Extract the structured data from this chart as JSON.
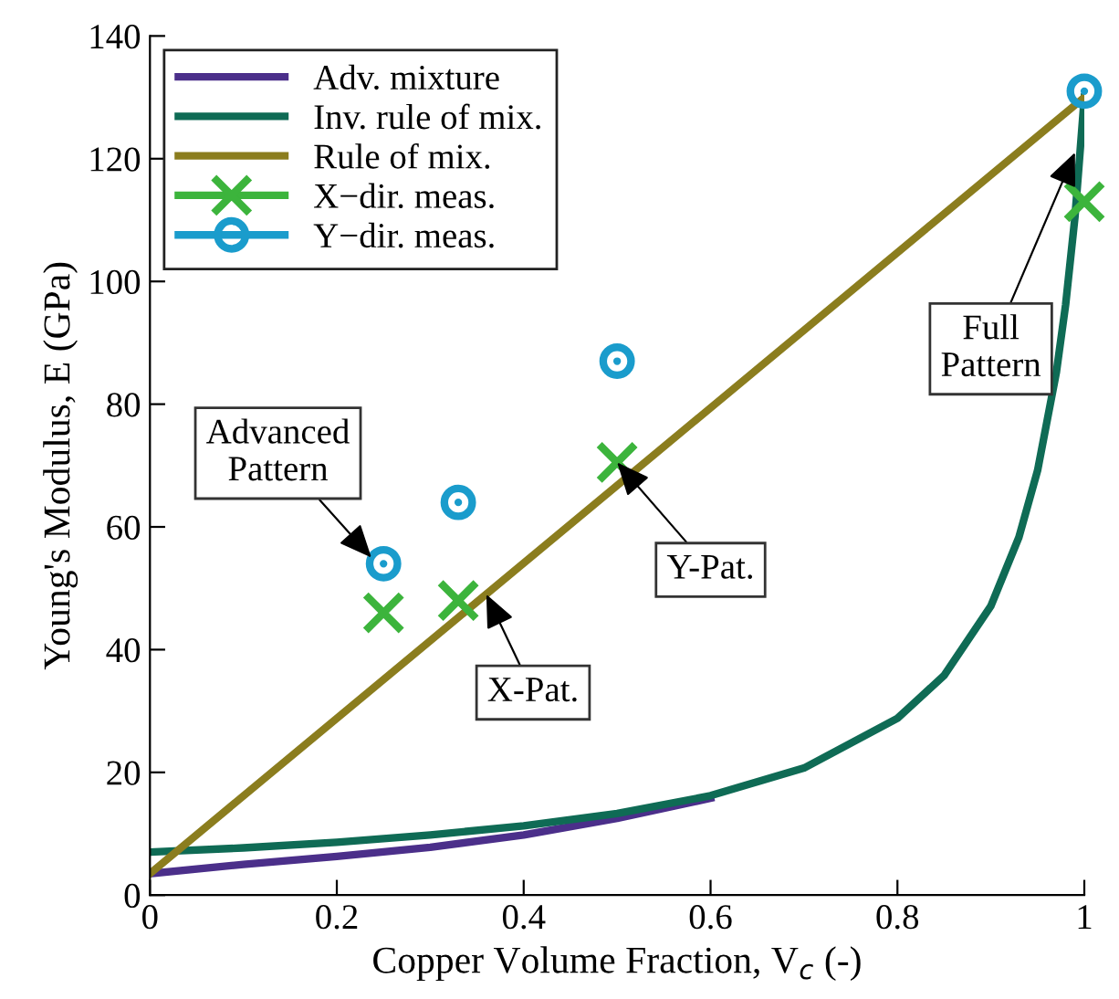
{
  "chart_data": {
    "type": "line",
    "xlabel": "Copper Volume Fraction, V$_{c}$ (-)",
    "ylabel": "Young's Modulus, E (GPa)",
    "xlim": [
      0,
      1
    ],
    "ylim": [
      0,
      140
    ],
    "xticks": [
      0,
      0.2,
      0.4,
      0.6,
      0.8,
      1
    ],
    "yticks": [
      0,
      20,
      40,
      60,
      80,
      100,
      120,
      140
    ],
    "grid": false,
    "legend": "top left",
    "series": [
      {
        "name": "Adv. mixture",
        "color": "#4b2f8a",
        "x": [
          0,
          0.1,
          0.2,
          0.3,
          0.4,
          0.5,
          0.6
        ],
        "values": [
          3.5,
          5,
          6.3,
          7.8,
          9.8,
          12.5,
          15.8
        ]
      },
      {
        "name": "Inv. rule of mix.",
        "color": "#0f6b55",
        "x": [
          0,
          0.1,
          0.2,
          0.3,
          0.4,
          0.5,
          0.6,
          0.7,
          0.8,
          0.85,
          0.9,
          0.93,
          0.95,
          0.97,
          0.98,
          0.99,
          1
        ],
        "values": [
          7,
          7.7,
          8.6,
          9.8,
          11.3,
          13.3,
          16.2,
          20.7,
          28.8,
          35.8,
          47.1,
          58.3,
          69.2,
          85.1,
          96.2,
          110.5,
          130
        ]
      },
      {
        "name": "Rule of mix.",
        "color": "#8b7d1e",
        "x": [
          0,
          1
        ],
        "values": [
          3.5,
          130
        ]
      },
      {
        "name": "X−dir. meas.",
        "type": "scatter",
        "marker": "cross",
        "color": "#3cb43c",
        "x": [
          0.25,
          0.33,
          0.5,
          1
        ],
        "values": [
          46,
          48,
          70.5,
          113
        ]
      },
      {
        "name": "Y−dir. meas.",
        "type": "scatter",
        "marker": "circle",
        "color": "#1a9ccc",
        "x": [
          0.25,
          0.33,
          0.5,
          1
        ],
        "values": [
          54,
          64,
          87,
          131
        ]
      }
    ],
    "annotations": [
      {
        "text": "Advanced\nPattern",
        "x": 0.237,
        "y": 55
      },
      {
        "text": "X-Pat.",
        "x": 0.36,
        "y": 49
      },
      {
        "text": "Y-Pat.",
        "x": 0.5,
        "y": 70.5
      },
      {
        "text": "Full\nPattern",
        "x": 0.99,
        "y": 121
      }
    ]
  }
}
